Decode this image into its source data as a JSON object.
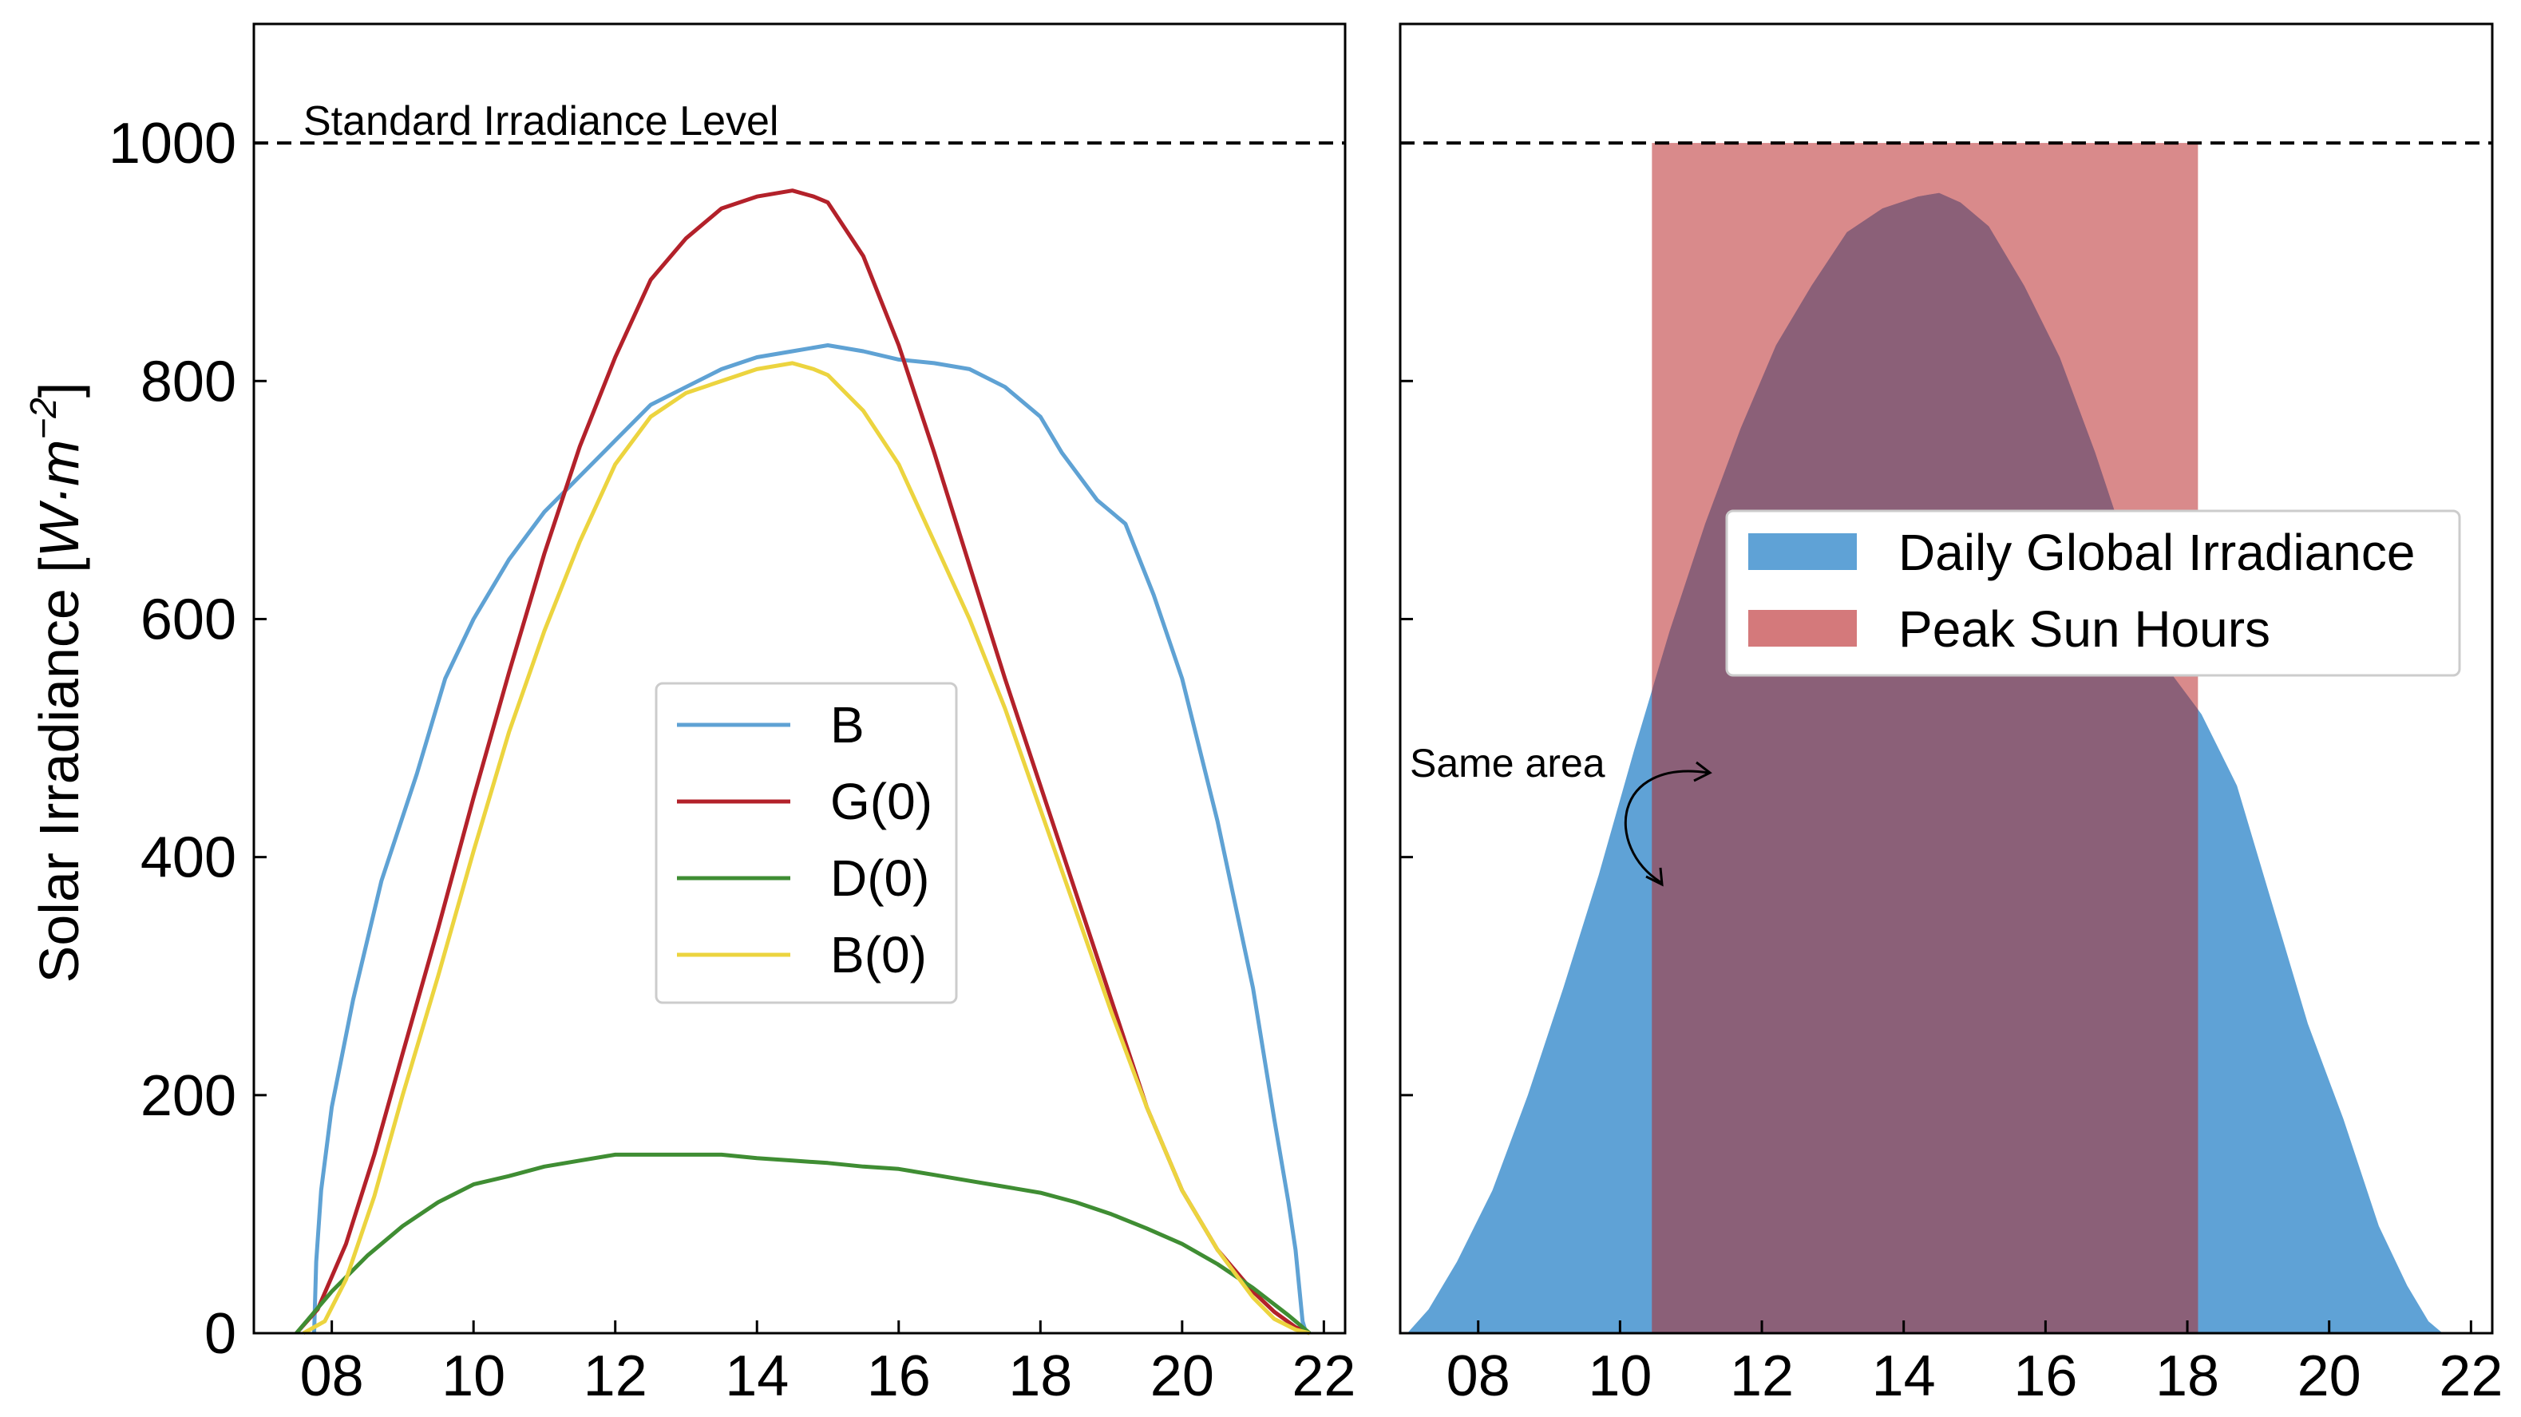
{
  "colors": {
    "B": "#5fa2d4",
    "G0": "#b3212a",
    "D0": "#3f8d33",
    "B0": "#ecd43f",
    "area_fill": "#5fa2d6",
    "psh_fill": "#c9585a",
    "overlap_fill": "#8b6078",
    "axis": "#000000"
  },
  "annotations": {
    "standard_level": "Standard Irradiance Level",
    "same_area": "Same area"
  },
  "chart_data": [
    {
      "type": "line",
      "ylabel_text": "Solar Irradiance [",
      "ylabel_unit": "W·m",
      "ylabel_exp": "−2",
      "ylabel_close": "]",
      "xlim": [
        6.9,
        22.3
      ],
      "ylim": [
        0,
        1100
      ],
      "xticks": [
        8,
        10,
        12,
        14,
        16,
        18,
        20,
        22
      ],
      "xtick_labels": [
        "08",
        "10",
        "12",
        "14",
        "16",
        "18",
        "20",
        "22"
      ],
      "yticks": [
        0,
        200,
        400,
        600,
        800,
        1000
      ],
      "ytick_labels": [
        "0",
        "200",
        "400",
        "600",
        "800",
        "1000"
      ],
      "reference_line": 1000,
      "legend_position": "center",
      "series": [
        {
          "name": "B",
          "x": [
            7.75,
            7.78,
            7.85,
            8.0,
            8.3,
            8.7,
            9.2,
            9.6,
            10.0,
            10.5,
            11.0,
            11.5,
            12.0,
            12.5,
            13.0,
            13.5,
            14.0,
            14.5,
            15.0,
            15.5,
            16.0,
            16.5,
            17.0,
            17.5,
            18.0,
            18.3,
            18.8,
            19.2,
            19.6,
            20.0,
            20.5,
            21.0,
            21.3,
            21.5,
            21.6,
            21.7,
            21.75
          ],
          "y": [
            0,
            60,
            120,
            190,
            280,
            380,
            470,
            550,
            600,
            650,
            690,
            720,
            750,
            780,
            795,
            810,
            820,
            825,
            830,
            825,
            818,
            815,
            810,
            795,
            770,
            740,
            700,
            680,
            620,
            550,
            430,
            290,
            180,
            110,
            70,
            10,
            0
          ]
        },
        {
          "name": "G(0)",
          "x": [
            7.5,
            7.8,
            8.2,
            8.6,
            9.0,
            9.5,
            10.0,
            10.5,
            11.0,
            11.5,
            12.0,
            12.5,
            13.0,
            13.5,
            14.0,
            14.5,
            14.8,
            15.0,
            15.5,
            16.0,
            16.5,
            17.0,
            17.5,
            18.0,
            18.5,
            19.0,
            19.5,
            20.0,
            20.5,
            21.0,
            21.3,
            21.6,
            21.8
          ],
          "y": [
            0,
            20,
            75,
            150,
            235,
            340,
            450,
            555,
            655,
            745,
            820,
            885,
            920,
            945,
            955,
            960,
            955,
            950,
            905,
            830,
            740,
            645,
            550,
            460,
            370,
            280,
            190,
            120,
            70,
            35,
            18,
            5,
            0
          ]
        },
        {
          "name": "D(0)",
          "x": [
            7.5,
            8.0,
            8.5,
            9.0,
            9.5,
            10.0,
            10.5,
            11.0,
            11.5,
            12.0,
            12.5,
            13.0,
            13.5,
            14.0,
            14.5,
            15.0,
            15.5,
            16.0,
            16.5,
            17.0,
            17.5,
            18.0,
            18.5,
            19.0,
            19.5,
            20.0,
            20.5,
            21.0,
            21.5,
            21.8
          ],
          "y": [
            0,
            35,
            65,
            90,
            110,
            125,
            132,
            140,
            145,
            150,
            150,
            150,
            150,
            147,
            145,
            143,
            140,
            138,
            133,
            128,
            123,
            118,
            110,
            100,
            88,
            75,
            58,
            38,
            15,
            0
          ]
        },
        {
          "name": "B(0)",
          "x": [
            7.6,
            7.9,
            8.2,
            8.6,
            9.0,
            9.5,
            10.0,
            10.5,
            11.0,
            11.5,
            12.0,
            12.5,
            13.0,
            13.5,
            14.0,
            14.5,
            14.8,
            15.0,
            15.5,
            16.0,
            16.5,
            17.0,
            17.5,
            18.0,
            18.5,
            19.0,
            19.5,
            20.0,
            20.5,
            21.0,
            21.3,
            21.6,
            21.8
          ],
          "y": [
            0,
            10,
            45,
            115,
            200,
            300,
            405,
            505,
            590,
            665,
            730,
            770,
            790,
            800,
            810,
            815,
            810,
            805,
            775,
            730,
            665,
            600,
            525,
            440,
            355,
            270,
            190,
            120,
            70,
            30,
            12,
            3,
            0
          ]
        }
      ]
    },
    {
      "type": "area",
      "xlim": [
        6.9,
        22.3
      ],
      "ylim": [
        0,
        1100
      ],
      "xticks": [
        8,
        10,
        12,
        14,
        16,
        18,
        20,
        22
      ],
      "xtick_labels": [
        "08",
        "10",
        "12",
        "14",
        "16",
        "18",
        "20",
        "22"
      ],
      "yticks": [
        0,
        200,
        400,
        600,
        800,
        1000
      ],
      "reference_line": 1000,
      "legend_position": "center-right",
      "series": [
        {
          "name": "Daily Global Irradiance",
          "type": "area",
          "x": [
            7.0,
            7.3,
            7.7,
            8.2,
            8.7,
            9.2,
            9.7,
            10.2,
            10.7,
            11.2,
            11.7,
            12.2,
            12.7,
            13.2,
            13.7,
            14.2,
            14.5,
            14.8,
            15.2,
            15.7,
            16.2,
            16.7,
            17.2,
            17.7,
            18.2,
            18.7,
            19.2,
            19.7,
            20.2,
            20.7,
            21.1,
            21.4,
            21.6
          ],
          "y": [
            0,
            20,
            60,
            120,
            200,
            290,
            385,
            490,
            590,
            680,
            760,
            830,
            880,
            925,
            945,
            955,
            958,
            950,
            930,
            880,
            820,
            740,
            650,
            560,
            520,
            460,
            360,
            260,
            180,
            90,
            40,
            10,
            0
          ]
        },
        {
          "name": "Peak Sun Hours",
          "type": "rect",
          "x_start": 10.45,
          "x_end": 18.15,
          "y": 1000
        }
      ]
    }
  ]
}
